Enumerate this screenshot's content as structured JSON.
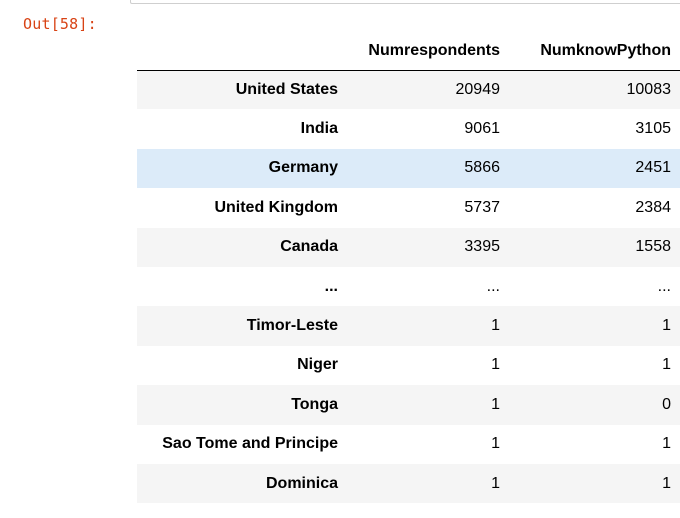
{
  "output_prompt": "Out[58]:",
  "table": {
    "columns": [
      "Numrespondents",
      "NumknowPython"
    ],
    "rows": [
      {
        "index": "United States",
        "values": [
          "20949",
          "10083"
        ]
      },
      {
        "index": "India",
        "values": [
          "9061",
          "3105"
        ]
      },
      {
        "index": "Germany",
        "values": [
          "5866",
          "2451"
        ]
      },
      {
        "index": "United Kingdom",
        "values": [
          "5737",
          "2384"
        ]
      },
      {
        "index": "Canada",
        "values": [
          "3395",
          "1558"
        ]
      },
      {
        "index": "...",
        "values": [
          "...",
          "..."
        ]
      },
      {
        "index": "Timor-Leste",
        "values": [
          "1",
          "1"
        ]
      },
      {
        "index": "Niger",
        "values": [
          "1",
          "1"
        ]
      },
      {
        "index": "Tonga",
        "values": [
          "1",
          "0"
        ]
      },
      {
        "index": "Sao Tome and Principe",
        "values": [
          "1",
          "1"
        ]
      },
      {
        "index": "Dominica",
        "values": [
          "1",
          "1"
        ]
      }
    ],
    "highlighted_row": 2,
    "colors": {
      "stripe": "#f5f5f5",
      "hover": "#dcebf9",
      "prompt": "#d84315"
    }
  }
}
